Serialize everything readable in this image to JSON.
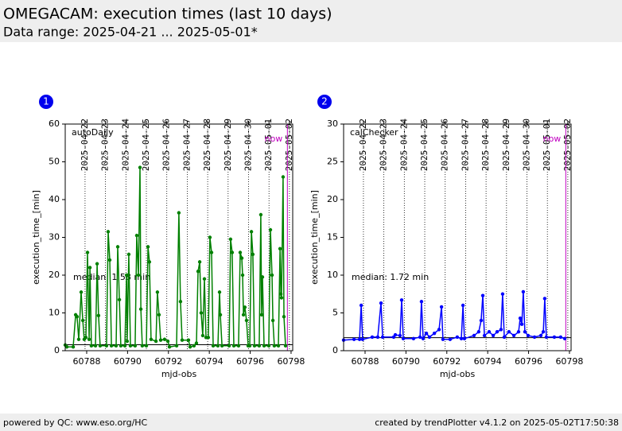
{
  "header": {
    "title": "OMEGACAM: execution times (last 10 days)",
    "subtitle": "Data range: 2025-04-21 ... 2025-05-01*"
  },
  "footer": {
    "left": "powered by QC: www.eso.org/HC",
    "right": "created by trendPlotter v4.1.2 on 2025-05-02T17:50:38"
  },
  "chart_data": [
    {
      "type": "line",
      "badge": "1",
      "xlabel": "mjd-obs",
      "ylabel": "execution_time_[min]",
      "xlim": [
        60786.95,
        60798.08
      ],
      "xticks": [
        60788,
        60790,
        60792,
        60794,
        60796,
        60798
      ],
      "x2ticks": [
        {
          "value": 60787.92,
          "label": "2025-04-22"
        },
        {
          "value": 60788.92,
          "label": "2025-04-23"
        },
        {
          "value": 60789.92,
          "label": "2025-04-24"
        },
        {
          "value": 60790.92,
          "label": "2025-04-25"
        },
        {
          "value": 60791.92,
          "label": "2025-04-26"
        },
        {
          "value": 60792.92,
          "label": "2025-04-27"
        },
        {
          "value": 60793.92,
          "label": "2025-04-28"
        },
        {
          "value": 60794.92,
          "label": "2025-04-29"
        },
        {
          "value": 60795.92,
          "label": "2025-04-30"
        },
        {
          "value": 60796.92,
          "label": "2025-05-01"
        },
        {
          "value": 60797.92,
          "label": "2025-05-02"
        }
      ],
      "ylim": [
        0,
        60
      ],
      "yticks": [
        0,
        10,
        20,
        30,
        40,
        50,
        60
      ],
      "median": {
        "value": 1.58,
        "label": "median: 1.58 min"
      },
      "now": {
        "value": 60797.82,
        "label": "now"
      },
      "series": [
        {
          "name": "autoDaily",
          "color": "#008000",
          "x": [
            60786.95,
            60787.03,
            60787.34,
            60787.46,
            60787.53,
            60787.61,
            60787.73,
            60787.81,
            60787.88,
            60787.96,
            60788.04,
            60788.12,
            60788.16,
            60788.23,
            60788.43,
            60788.51,
            60788.58,
            60788.66,
            60788.97,
            60789.05,
            60789.13,
            60789.21,
            60789.44,
            60789.52,
            60789.6,
            60789.67,
            60789.87,
            60789.95,
            60789.98,
            60790.06,
            60790.14,
            60790.37,
            60790.45,
            60790.53,
            60790.61,
            60790.65,
            60790.72,
            60790.92,
            60791.0,
            60791.07,
            60791.15,
            60791.39,
            60791.46,
            60791.54,
            60791.62,
            60791.81,
            60791.97,
            60792.05,
            60792.4,
            60792.51,
            60792.59,
            60792.67,
            60792.98,
            60793.06,
            60793.25,
            60793.37,
            60793.45,
            60793.53,
            60793.6,
            60793.68,
            60793.76,
            60793.84,
            60793.95,
            60794.03,
            60794.11,
            60794.19,
            60794.42,
            60794.5,
            60794.54,
            60794.62,
            60794.97,
            60795.04,
            60795.12,
            60795.2,
            60795.43,
            60795.51,
            60795.59,
            60795.63,
            60795.67,
            60795.74,
            60795.82,
            60795.9,
            60795.98,
            60796.06,
            60796.13,
            60796.21,
            60796.44,
            60796.52,
            60796.56,
            60796.6,
            60796.68,
            60796.91,
            60796.99,
            60797.07,
            60797.11,
            60797.18,
            60797.38,
            60797.46,
            60797.5,
            60797.53,
            60797.61,
            60797.65,
            60797.73
          ],
          "values": [
            1.5,
            1.0,
            1.0,
            9.5,
            9.0,
            3.0,
            15.5,
            8.0,
            3.0,
            3.5,
            26,
            3.0,
            22,
            1.3,
            1.3,
            23,
            9.3,
            1.3,
            1.3,
            31.5,
            24,
            1.3,
            1.3,
            27.5,
            13.5,
            1.3,
            1.3,
            20,
            2.5,
            25.5,
            1.3,
            1.3,
            30.5,
            20,
            48.5,
            11,
            1.3,
            1.3,
            27.5,
            23.5,
            3.0,
            2.5,
            15.5,
            9.5,
            2.8,
            3.0,
            2.5,
            1.0,
            1.3,
            36.5,
            13,
            2.8,
            2.8,
            1.0,
            1.3,
            2.0,
            21,
            23.5,
            10,
            4.0,
            19,
            3.5,
            3.5,
            30,
            26,
            1.3,
            1.3,
            15.5,
            9.5,
            1.3,
            1.3,
            29.5,
            26,
            1.3,
            1.3,
            26,
            24.5,
            20,
            9.5,
            11.5,
            8,
            1.3,
            1.3,
            31.5,
            25.5,
            1.3,
            1.3,
            36,
            9.5,
            19.5,
            1.3,
            1.3,
            32,
            20,
            8,
            1.3,
            1.3,
            27,
            15,
            14,
            46,
            9,
            1.3
          ]
        }
      ]
    },
    {
      "type": "line",
      "badge": "2",
      "xlabel": "mjd-obs",
      "ylabel": "execution_time_[min]",
      "xlim": [
        60786.95,
        60798.08
      ],
      "xticks": [
        60788,
        60790,
        60792,
        60794,
        60796,
        60798
      ],
      "x2ticks": [
        {
          "value": 60787.92,
          "label": "2025-04-22"
        },
        {
          "value": 60788.92,
          "label": "2025-04-23"
        },
        {
          "value": 60789.92,
          "label": "2025-04-24"
        },
        {
          "value": 60790.92,
          "label": "2025-04-25"
        },
        {
          "value": 60791.92,
          "label": "2025-04-26"
        },
        {
          "value": 60792.92,
          "label": "2025-04-27"
        },
        {
          "value": 60793.92,
          "label": "2025-04-28"
        },
        {
          "value": 60794.92,
          "label": "2025-04-29"
        },
        {
          "value": 60795.92,
          "label": "2025-04-30"
        },
        {
          "value": 60796.92,
          "label": "2025-05-01"
        },
        {
          "value": 60797.92,
          "label": "2025-05-02"
        }
      ],
      "ylim": [
        0,
        30
      ],
      "yticks": [
        0,
        5,
        10,
        15,
        20,
        25,
        30
      ],
      "median": {
        "value": 1.72,
        "label": "median: 1.72 min"
      },
      "now": {
        "value": 60797.82,
        "label": "now"
      },
      "series": [
        {
          "name": "calChecker",
          "color": "#0000ff",
          "x": [
            60786.95,
            60787.46,
            60787.73,
            60787.81,
            60787.88,
            60788.35,
            60788.62,
            60788.78,
            60788.86,
            60789.4,
            60789.48,
            60789.71,
            60789.79,
            60789.87,
            60790.37,
            60790.69,
            60790.76,
            60790.84,
            60791.0,
            60791.15,
            60791.39,
            60791.62,
            60791.74,
            60791.81,
            60792.16,
            60792.51,
            60792.71,
            60792.79,
            60792.86,
            60793.33,
            60793.56,
            60793.68,
            60793.76,
            60793.84,
            60794.07,
            60794.27,
            60794.46,
            60794.65,
            60794.73,
            60794.81,
            60795.04,
            60795.28,
            60795.51,
            60795.59,
            60795.67,
            60795.74,
            60795.82,
            60795.98,
            60796.29,
            60796.6,
            60796.72,
            60796.79,
            60796.87,
            60797.26,
            60797.57,
            60797.77
          ],
          "values": [
            1.4,
            1.5,
            1.5,
            6.0,
            1.5,
            1.8,
            1.8,
            6.3,
            1.8,
            1.8,
            2.1,
            2.0,
            6.7,
            1.6,
            1.6,
            1.8,
            6.5,
            1.6,
            2.3,
            1.8,
            2.3,
            2.8,
            5.8,
            1.5,
            1.5,
            1.8,
            1.6,
            6.0,
            1.6,
            2.0,
            2.5,
            4.0,
            7.3,
            2.0,
            2.5,
            2.0,
            2.5,
            2.8,
            7.5,
            1.8,
            2.5,
            2.0,
            2.5,
            4.3,
            3.5,
            7.8,
            2.5,
            2.0,
            1.8,
            2.0,
            2.5,
            6.9,
            1.8,
            1.8,
            1.8,
            1.6
          ]
        }
      ]
    }
  ]
}
